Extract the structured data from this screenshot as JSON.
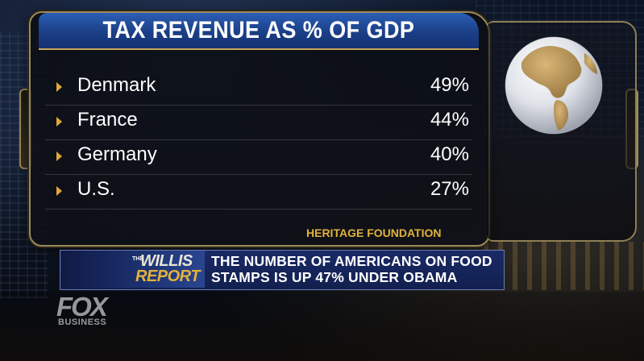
{
  "graphic": {
    "title": "TAX REVENUE AS % OF GDP",
    "rows": [
      {
        "country": "Denmark",
        "value": "49%"
      },
      {
        "country": "France",
        "value": "44%"
      },
      {
        "country": "Germany",
        "value": "40%"
      },
      {
        "country": "U.S.",
        "value": "27%"
      }
    ],
    "source": "HERITAGE FOUNDATION"
  },
  "lower_third": {
    "show_the": "THE",
    "show_name": "WILLIS",
    "show_name_2": "REPORT",
    "headline": "THE NUMBER OF AMERICANS ON FOOD STAMPS IS UP 47% UNDER OBAMA"
  },
  "network": {
    "logo_main": "FOX",
    "logo_sub": "BUSINESS"
  },
  "colors": {
    "title_blue": "#1b3f86",
    "accent_gold": "#e3b23c",
    "globe_land": "#b8955a"
  },
  "icons": [
    "globe-icon",
    "bullet-arrow-icon"
  ]
}
